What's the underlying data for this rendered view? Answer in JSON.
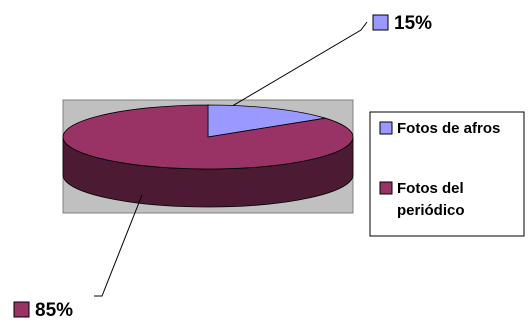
{
  "chart_data": {
    "type": "pie",
    "three_d": true,
    "title": "",
    "series": [
      {
        "name": "Fotos de afros",
        "value": 15,
        "label": "15%",
        "color": "#9999ff"
      },
      {
        "name": "Fotos del periódico",
        "value": 85,
        "label": "85%",
        "color": "#993366"
      }
    ],
    "legend": {
      "position": "right",
      "items": [
        {
          "lines": [
            "Fotos de afros"
          ],
          "color": "#9999ff"
        },
        {
          "lines": [
            "Fotos del",
            "periódico"
          ],
          "color": "#993366"
        }
      ]
    },
    "plot_area_color": "#c0c0c0",
    "side_color": "#4d1a33"
  }
}
